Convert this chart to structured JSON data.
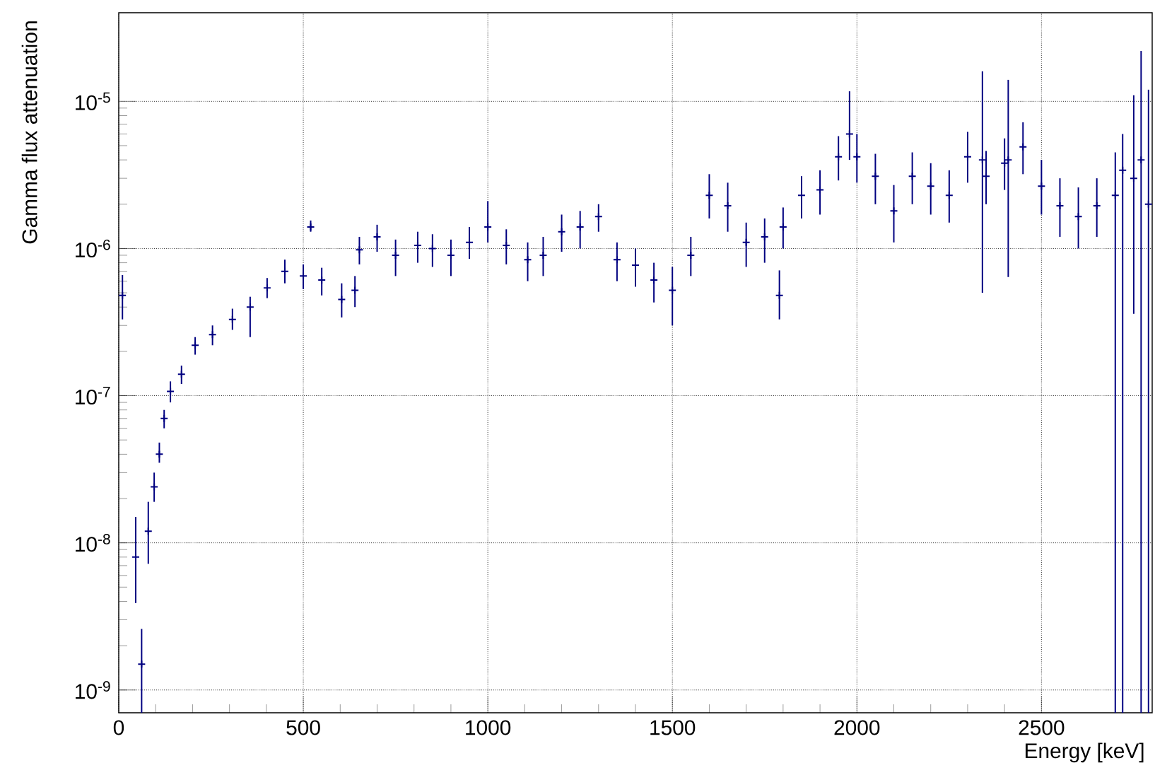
{
  "chart_data": {
    "type": "scatter",
    "xlabel": "Energy [keV]",
    "ylabel": "Gamma flux attenuation",
    "marker": "cross",
    "log": "y",
    "grid": true,
    "color": "#000080",
    "xlim": [
      0,
      2800
    ],
    "ylim": [
      7e-10,
      4e-05
    ],
    "xticks": [
      0,
      500,
      1000,
      1500,
      2000,
      2500
    ],
    "yticks": [
      {
        "value": 1e-09,
        "label": "10$^{-9}$"
      },
      {
        "value": 1e-08,
        "label": "10$^{-8}$"
      },
      {
        "value": 1e-07,
        "label": "10$^{-7}$"
      },
      {
        "value": 1e-06,
        "label": "10$^{-6}$"
      },
      {
        "value": 1e-05,
        "label": "10$^{-5}$"
      }
    ],
    "x": [
      10,
      46,
      62,
      80,
      96,
      110,
      123,
      140,
      170,
      207,
      254,
      308,
      356,
      402,
      450,
      500,
      520,
      550,
      604,
      640,
      652,
      700,
      750,
      810,
      850,
      900,
      950,
      1000,
      1050,
      1108,
      1150,
      1200,
      1250,
      1300,
      1350,
      1400,
      1450,
      1500,
      1550,
      1600,
      1650,
      1700,
      1750,
      1790,
      1800,
      1850,
      1900,
      1950,
      1980,
      2000,
      2050,
      2100,
      2150,
      2200,
      2250,
      2300,
      2340,
      2350,
      2400,
      2410,
      2450,
      2500,
      2550,
      2600,
      2650,
      2700,
      2720,
      2750,
      2770,
      2790
    ],
    "values": [
      4.8e-07,
      8e-09,
      1.5e-09,
      1.2e-08,
      2.4e-08,
      4e-08,
      7e-08,
      1.07e-07,
      1.4e-07,
      2.2e-07,
      2.6e-07,
      3.3e-07,
      4e-07,
      5.4e-07,
      7e-07,
      6.5e-07,
      1.4e-06,
      6.1e-07,
      4.5e-07,
      5.2e-07,
      9.8e-07,
      1.2e-06,
      9e-07,
      1.05e-06,
      1e-06,
      9e-07,
      1.1e-06,
      1.4e-06,
      1.05e-06,
      8.4e-07,
      9e-07,
      1.3e-06,
      1.4e-06,
      1.65e-06,
      8.4e-07,
      7.7e-07,
      6.1e-07,
      5.2e-07,
      9e-07,
      2.3e-06,
      1.95e-06,
      1.1e-06,
      1.2e-06,
      4.8e-07,
      1.4e-06,
      2.3e-06,
      2.5e-06,
      4.2e-06,
      6e-06,
      4.2e-06,
      3.1e-06,
      1.8e-06,
      3.1e-06,
      2.65e-06,
      2.3e-06,
      4.2e-06,
      4e-06,
      3.1e-06,
      3.8e-06,
      4e-06,
      4.9e-06,
      2.65e-06,
      1.95e-06,
      1.65e-06,
      1.95e-06,
      2.3e-06,
      3.4e-06,
      3e-06,
      4e-06,
      2e-06
    ],
    "errors": [
      [
        3.3e-07,
        6.6e-07
      ],
      [
        3.9e-09,
        1.5e-08
      ],
      [
        7e-10,
        2.6e-09
      ],
      [
        7.2e-09,
        1.9e-08
      ],
      [
        1.9e-08,
        3e-08
      ],
      [
        3.5e-08,
        4.8e-08
      ],
      [
        6e-08,
        8e-08
      ],
      [
        9e-08,
        1.25e-07
      ],
      [
        1.2e-07,
        1.6e-07
      ],
      [
        1.9e-07,
        2.5e-07
      ],
      [
        2.2e-07,
        3e-07
      ],
      [
        2.8e-07,
        3.9e-07
      ],
      [
        2.5e-07,
        4.7e-07
      ],
      [
        4.6e-07,
        6.3e-07
      ],
      [
        5.8e-07,
        8.4e-07
      ],
      [
        5.3e-07,
        7.8e-07
      ],
      [
        1.3e-06,
        1.55e-06
      ],
      [
        4.8e-07,
        7.4e-07
      ],
      [
        3.4e-07,
        5.8e-07
      ],
      [
        4e-07,
        6.5e-07
      ],
      [
        7.8e-07,
        1.2e-06
      ],
      [
        9.5e-07,
        1.45e-06
      ],
      [
        6.5e-07,
        1.15e-06
      ],
      [
        8e-07,
        1.3e-06
      ],
      [
        7.5e-07,
        1.25e-06
      ],
      [
        6.5e-07,
        1.15e-06
      ],
      [
        8.5e-07,
        1.4e-06
      ],
      [
        1.1e-06,
        2.1e-06
      ],
      [
        7.8e-07,
        1.35e-06
      ],
      [
        6e-07,
        1.1e-06
      ],
      [
        6.5e-07,
        1.2e-06
      ],
      [
        9.5e-07,
        1.7e-06
      ],
      [
        1e-06,
        1.8e-06
      ],
      [
        1.3e-06,
        2e-06
      ],
      [
        6e-07,
        1.1e-06
      ],
      [
        5.5e-07,
        1e-06
      ],
      [
        4.3e-07,
        8e-07
      ],
      [
        3e-07,
        7.5e-07
      ],
      [
        6.5e-07,
        1.2e-06
      ],
      [
        1.6e-06,
        3.2e-06
      ],
      [
        1.3e-06,
        2.8e-06
      ],
      [
        7.5e-07,
        1.5e-06
      ],
      [
        8e-07,
        1.6e-06
      ],
      [
        3.3e-07,
        7.1e-07
      ],
      [
        1e-06,
        1.9e-06
      ],
      [
        1.6e-06,
        3.1e-06
      ],
      [
        1.7e-06,
        3.4e-06
      ],
      [
        2.9e-06,
        5.8e-06
      ],
      [
        4e-06,
        1.17e-05
      ],
      [
        2.8e-06,
        6e-06
      ],
      [
        2e-06,
        4.4e-06
      ],
      [
        1.1e-06,
        2.7e-06
      ],
      [
        2e-06,
        4.5e-06
      ],
      [
        1.7e-06,
        3.8e-06
      ],
      [
        1.5e-06,
        3.4e-06
      ],
      [
        2.8e-06,
        6.2e-06
      ],
      [
        5e-07,
        1.6e-05
      ],
      [
        2e-06,
        4.6e-06
      ],
      [
        2.5e-06,
        5.6e-06
      ],
      [
        6.4e-07,
        1.4e-05
      ],
      [
        3.2e-06,
        7.2e-06
      ],
      [
        1.7e-06,
        4e-06
      ],
      [
        1.2e-06,
        3e-06
      ],
      [
        1e-06,
        2.6e-06
      ],
      [
        1.2e-06,
        3e-06
      ],
      [
        7e-10,
        4.5e-06
      ],
      [
        7e-10,
        6e-06
      ],
      [
        3.6e-07,
        1.1e-05
      ],
      [
        7e-10,
        2.2e-05
      ],
      [
        7e-10,
        1.2e-05
      ]
    ]
  }
}
